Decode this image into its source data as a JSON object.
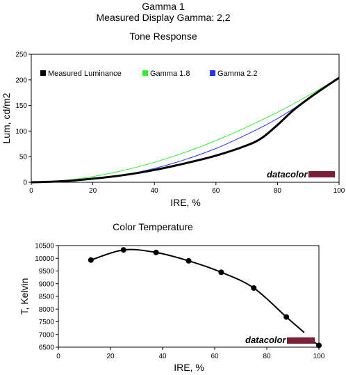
{
  "header": {
    "title": "Gamma 1",
    "subtitle": "Measured Display Gamma: 2,2"
  },
  "colors": {
    "measured": "#000000",
    "gamma18": "#33ee33",
    "gamma22": "#2233ee",
    "brand_bar": "#7b1f36",
    "axis": "#000000"
  },
  "chart_data": [
    {
      "type": "line",
      "title": "Tone Response",
      "xlabel": "IRE, %",
      "ylabel": "Lum, cd/m2",
      "xlim": [
        0,
        100
      ],
      "ylim": [
        0,
        250
      ],
      "xticks": [
        0,
        20,
        40,
        60,
        80,
        100
      ],
      "yticks": [
        0,
        50,
        100,
        150,
        200,
        250
      ],
      "grid": false,
      "legend": "top",
      "brand": "datacolor",
      "series": [
        {
          "name": "Measured Luminance",
          "color": "#000000",
          "x": [
            0,
            10,
            20,
            30,
            40,
            50,
            60,
            70,
            75,
            80,
            85,
            90,
            95,
            100
          ],
          "y": [
            0,
            2,
            7,
            14,
            24,
            37,
            52,
            72,
            87,
            112,
            140,
            163,
            184,
            204
          ]
        },
        {
          "name": "Gamma 1.8",
          "color": "#33ee33",
          "x": [
            0,
            10,
            20,
            30,
            40,
            50,
            60,
            70,
            80,
            90,
            100
          ],
          "y": [
            0,
            3.2,
            11.2,
            23.3,
            39.0,
            58.6,
            81.5,
            107.7,
            136.8,
            169.1,
            204
          ]
        },
        {
          "name": "Gamma 2.2",
          "color": "#2233ee",
          "x": [
            0,
            10,
            20,
            30,
            40,
            50,
            60,
            70,
            80,
            90,
            100
          ],
          "y": [
            0,
            1.3,
            5.9,
            14.3,
            27.0,
            44.4,
            66.1,
            93.3,
            124.4,
            162.6,
            204
          ]
        }
      ]
    },
    {
      "type": "line",
      "title": "Color Temperature",
      "xlabel": "IRE, %",
      "ylabel": "T, Kelvin",
      "xlim": [
        0,
        100
      ],
      "ylim": [
        6500,
        10500
      ],
      "xticks": [
        0,
        20,
        40,
        60,
        80,
        100
      ],
      "yticks": [
        6500,
        7000,
        7500,
        8000,
        8500,
        9000,
        9500,
        10000,
        10500
      ],
      "grid": false,
      "brand": "datacolor",
      "series": [
        {
          "name": "",
          "color": "#000000",
          "x": [
            12.5,
            25,
            37.5,
            50,
            62.5,
            75,
            87.5,
            100
          ],
          "y": [
            9930,
            10330,
            10230,
            9900,
            9450,
            8830,
            7690,
            6570
          ],
          "markers": true
        }
      ]
    }
  ]
}
